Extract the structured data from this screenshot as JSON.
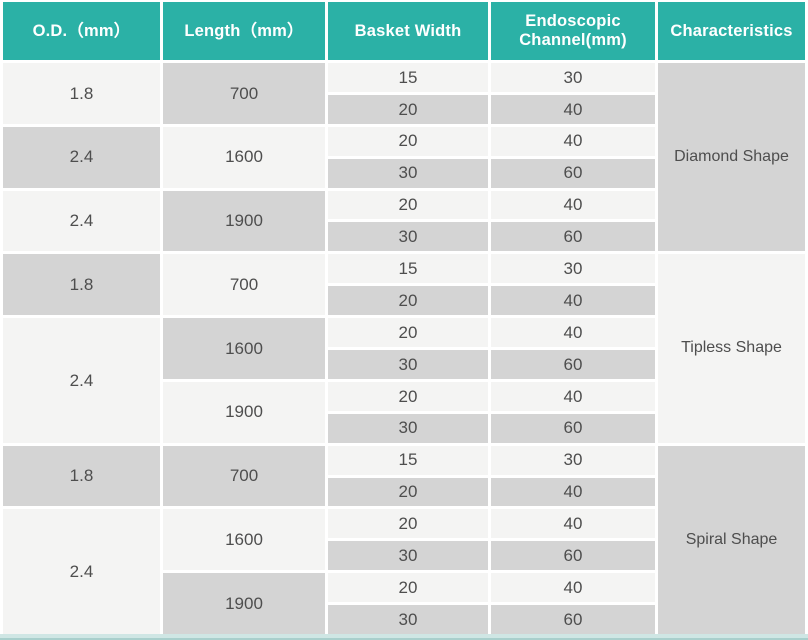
{
  "colors": {
    "header_bg": "#2bb1a6",
    "header_text": "#ffffff",
    "cell_gray": "#d4d4d4",
    "cell_light": "#f4f4f3",
    "cell_text": "#4e4e4e",
    "bottom_band": "#cfe6e4"
  },
  "header": {
    "od": "O.D.（mm）",
    "length": "Length（mm）",
    "basket_width": "Basket Width",
    "channel_line1": "Endoscopic",
    "channel_line2": "Channel(mm)",
    "characteristics": "Characteristics"
  },
  "sections": [
    {
      "characteristic": "Diamond Shape",
      "od_cells": [
        {
          "text": "1.8"
        },
        {
          "text": "2.4"
        },
        {
          "text": "2.4"
        }
      ],
      "length_cells": [
        {
          "text": "700"
        },
        {
          "text": "1600"
        },
        {
          "text": "1900"
        }
      ],
      "rows": [
        {
          "basket_width": "15",
          "endoscopic_channel": "30"
        },
        {
          "basket_width": "20",
          "endoscopic_channel": "40"
        },
        {
          "basket_width": "20",
          "endoscopic_channel": "40"
        },
        {
          "basket_width": "30",
          "endoscopic_channel": "60"
        },
        {
          "basket_width": "20",
          "endoscopic_channel": "40"
        },
        {
          "basket_width": "30",
          "endoscopic_channel": "60"
        }
      ]
    },
    {
      "characteristic": "Tipless Shape",
      "od_cells": [
        {
          "text": "1.8"
        },
        {
          "text": "2.4"
        }
      ],
      "length_cells": [
        {
          "text": "700"
        },
        {
          "text": "1600"
        },
        {
          "text": "1900"
        }
      ],
      "rows": [
        {
          "basket_width": "15",
          "endoscopic_channel": "30"
        },
        {
          "basket_width": "20",
          "endoscopic_channel": "40"
        },
        {
          "basket_width": "20",
          "endoscopic_channel": "40"
        },
        {
          "basket_width": "30",
          "endoscopic_channel": "60"
        },
        {
          "basket_width": "20",
          "endoscopic_channel": "40"
        },
        {
          "basket_width": "30",
          "endoscopic_channel": "60"
        }
      ]
    },
    {
      "characteristic": "Spiral Shape",
      "od_cells": [
        {
          "text": "1.8"
        },
        {
          "text": "2.4"
        }
      ],
      "length_cells": [
        {
          "text": "700"
        },
        {
          "text": "1600"
        },
        {
          "text": "1900"
        }
      ],
      "rows": [
        {
          "basket_width": "15",
          "endoscopic_channel": "30"
        },
        {
          "basket_width": "20",
          "endoscopic_channel": "40"
        },
        {
          "basket_width": "20",
          "endoscopic_channel": "40"
        },
        {
          "basket_width": "30",
          "endoscopic_channel": "60"
        },
        {
          "basket_width": "20",
          "endoscopic_channel": "40"
        },
        {
          "basket_width": "30",
          "endoscopic_channel": "60"
        }
      ]
    }
  ]
}
